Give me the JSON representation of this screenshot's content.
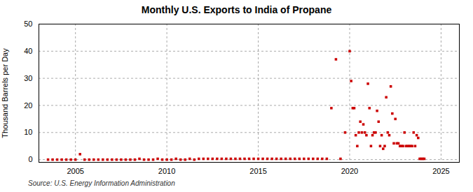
{
  "chart_data": {
    "type": "scatter",
    "title": "Monthly U.S. Exports to India of Propane",
    "ylabel": "Thousand Barrels per Day",
    "annotation": "Source: U.S. Energy Information Administration",
    "color": "#cc0000",
    "marker": "square",
    "grid": true,
    "xlim": [
      2003.0,
      2026.0
    ],
    "ylim": [
      -1,
      50
    ],
    "xticks": [
      2005,
      2010,
      2015,
      2020,
      2025
    ],
    "yticks": [
      0,
      10,
      20,
      30,
      40,
      50
    ],
    "x": [
      2003.5,
      2003.75,
      2004.0,
      2004.25,
      2004.5,
      2004.75,
      2005.0,
      2005.25,
      2005.5,
      2005.75,
      2006.0,
      2006.25,
      2006.5,
      2006.75,
      2007.0,
      2007.25,
      2007.5,
      2007.75,
      2008.0,
      2008.25,
      2008.5,
      2008.75,
      2009.0,
      2009.25,
      2009.5,
      2009.75,
      2010.0,
      2010.25,
      2010.5,
      2010.75,
      2011.0,
      2011.25,
      2011.5,
      2011.75,
      2012.0,
      2012.25,
      2012.5,
      2012.75,
      2013.0,
      2013.25,
      2013.5,
      2013.75,
      2014.0,
      2014.25,
      2014.5,
      2014.75,
      2015.0,
      2015.25,
      2015.5,
      2015.75,
      2016.0,
      2016.25,
      2016.5,
      2016.75,
      2017.0,
      2017.25,
      2017.5,
      2017.75,
      2018.0,
      2018.25,
      2018.5,
      2018.75,
      2019.0,
      2019.25,
      2019.5,
      2019.75,
      2020.0,
      2020.083,
      2020.167,
      2020.25,
      2020.333,
      2020.417,
      2020.5,
      2020.583,
      2020.667,
      2020.75,
      2020.833,
      2020.917,
      2021.0,
      2021.083,
      2021.167,
      2021.25,
      2021.333,
      2021.417,
      2021.5,
      2021.583,
      2021.667,
      2021.75,
      2021.833,
      2021.917,
      2022.0,
      2022.083,
      2022.167,
      2022.25,
      2022.333,
      2022.417,
      2022.5,
      2022.583,
      2022.667,
      2022.75,
      2022.833,
      2022.917,
      2023.0,
      2023.083,
      2023.167,
      2023.25,
      2023.333,
      2023.417,
      2023.5,
      2023.583,
      2023.667,
      2023.75,
      2023.833,
      2023.917,
      2024.0,
      2024.083
    ],
    "values": [
      0,
      0,
      0,
      0,
      0,
      0,
      0,
      2,
      0,
      0,
      0,
      0,
      0,
      0,
      0,
      0,
      0,
      0,
      0,
      0,
      0.3,
      0,
      0,
      0,
      0.3,
      0,
      0,
      0,
      0.3,
      0,
      0,
      0.3,
      0,
      0.3,
      0.3,
      0.3,
      0.3,
      0.3,
      0.3,
      0.3,
      0.3,
      0.3,
      0.3,
      0.3,
      0.3,
      0.3,
      0.3,
      0.3,
      0.3,
      0.3,
      0.3,
      0.3,
      0.3,
      0.3,
      0.3,
      0.3,
      0.3,
      0.3,
      0.3,
      0.3,
      0.3,
      0.3,
      19,
      37,
      0.3,
      10,
      40,
      29,
      19,
      19,
      9,
      5,
      10,
      14,
      10,
      13,
      10,
      9,
      28,
      19,
      5,
      9,
      10,
      10,
      18,
      14,
      5,
      9,
      4,
      5,
      23,
      10,
      9,
      27,
      17,
      6,
      15,
      6,
      6,
      5,
      5,
      5,
      10,
      5,
      5,
      5,
      5,
      5,
      10,
      5,
      9,
      8,
      0.3,
      0.3,
      0.3,
      0.3
    ]
  }
}
